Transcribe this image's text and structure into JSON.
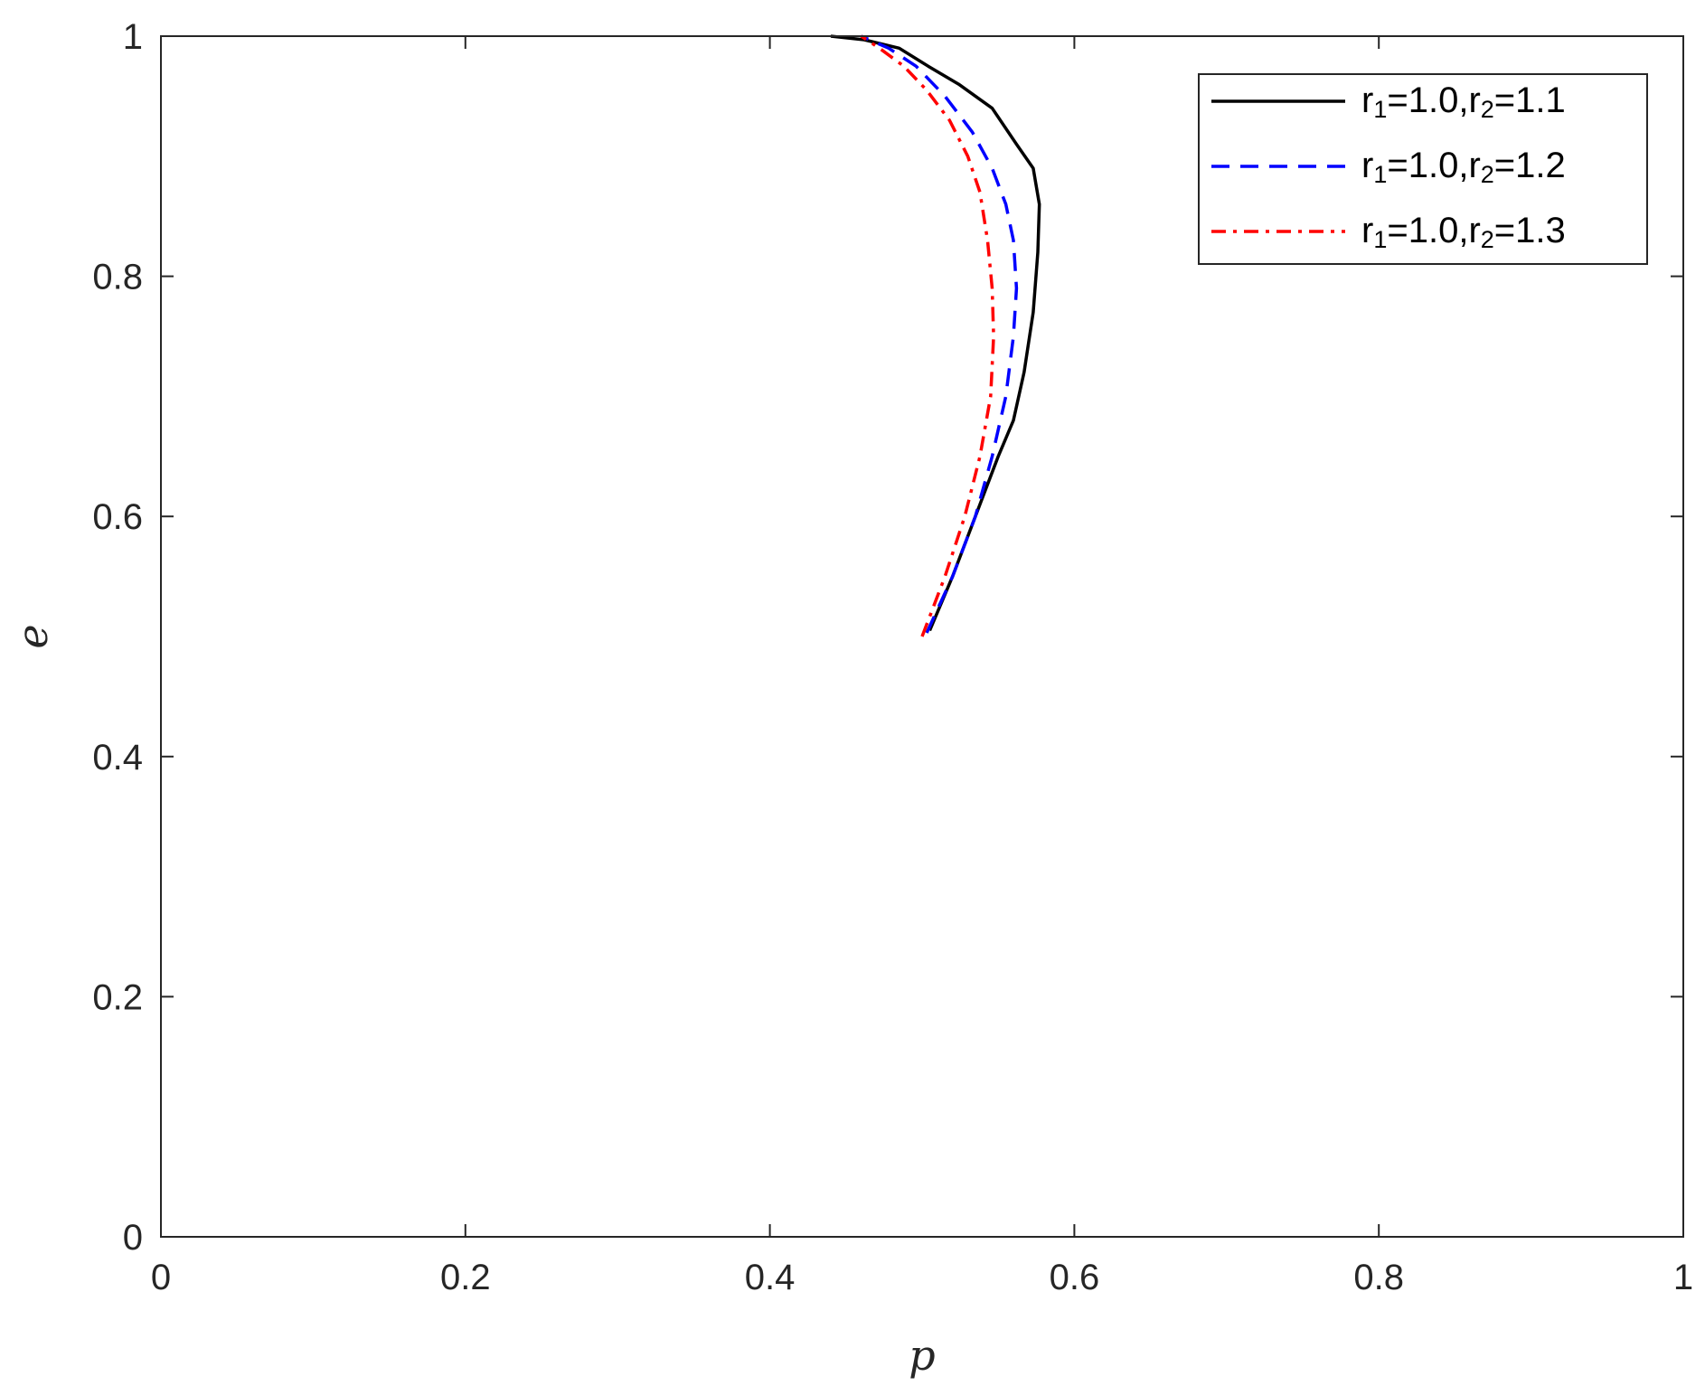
{
  "chart_data": {
    "type": "line",
    "title": "",
    "xlabel": "p",
    "ylabel": "e",
    "xlim": [
      0,
      1
    ],
    "ylim": [
      0,
      1
    ],
    "xticks": [
      "0",
      "0.2",
      "0.4",
      "0.6",
      "0.8",
      "1"
    ],
    "yticks": [
      "0",
      "0.2",
      "0.4",
      "0.6",
      "0.8",
      "1"
    ],
    "xtick_values": [
      0,
      0.2,
      0.4,
      0.6,
      0.8,
      1
    ],
    "ytick_values": [
      0,
      0.2,
      0.4,
      0.6,
      0.8,
      1
    ],
    "grid": false,
    "legend_position": "top-right",
    "series": [
      {
        "name": "r1=1.0,r2=1.1",
        "name_parts": [
          "r",
          "1",
          "=1.0,r",
          "2",
          "=1.1"
        ],
        "color": "#000000",
        "style": "solid",
        "x": [
          0.505,
          0.52,
          0.535,
          0.55,
          0.56,
          0.567,
          0.573,
          0.576,
          0.577,
          0.573,
          0.562,
          0.546,
          0.524,
          0.504,
          0.485,
          0.462,
          0.44
        ],
        "y": [
          0.505,
          0.55,
          0.6,
          0.65,
          0.68,
          0.72,
          0.77,
          0.82,
          0.86,
          0.89,
          0.91,
          0.94,
          0.96,
          0.975,
          0.99,
          0.997,
          1.0
        ]
      },
      {
        "name": "r1=1.0,r2=1.2",
        "name_parts": [
          "r",
          "1",
          "=1.0,r",
          "2",
          "=1.2"
        ],
        "color": "#0000ff",
        "style": "dashed",
        "x": [
          0.503,
          0.52,
          0.535,
          0.546,
          0.555,
          0.56,
          0.562,
          0.56,
          0.555,
          0.546,
          0.533,
          0.515,
          0.496,
          0.478,
          0.46
        ],
        "y": [
          0.503,
          0.55,
          0.6,
          0.65,
          0.7,
          0.75,
          0.79,
          0.83,
          0.86,
          0.89,
          0.92,
          0.95,
          0.975,
          0.99,
          1.0
        ]
      },
      {
        "name": "r1=1.0,r2=1.3",
        "name_parts": [
          "r",
          "1",
          "=1.0,r",
          "2",
          "=1.3"
        ],
        "color": "#ff0000",
        "style": "dashdot",
        "x": [
          0.5,
          0.515,
          0.528,
          0.538,
          0.545,
          0.547,
          0.546,
          0.543,
          0.538,
          0.53,
          0.518,
          0.503,
          0.488,
          0.472,
          0.46
        ],
        "y": [
          0.5,
          0.55,
          0.6,
          0.65,
          0.7,
          0.75,
          0.79,
          0.83,
          0.87,
          0.9,
          0.93,
          0.955,
          0.975,
          0.99,
          1.0
        ]
      }
    ]
  }
}
